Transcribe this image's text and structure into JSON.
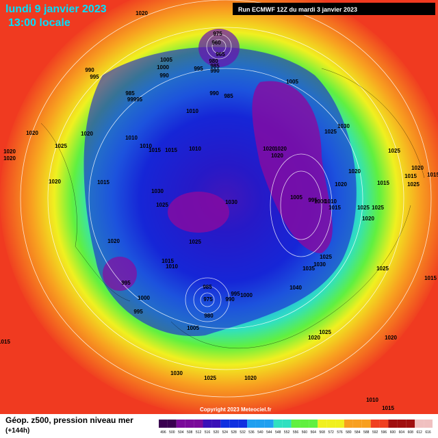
{
  "header": {
    "date": "lundi 9 janvier 2023",
    "time": "13:00 locale",
    "run": "Run ECMWF 12Z du mardi 3 janvier 2023"
  },
  "footer": {
    "label": "Géop. z500, pression niveau mer",
    "lead": "(+144h)",
    "copyright": "Copyright 2023 Meteociel.fr",
    "colorbar_ticks": [
      496,
      500,
      504,
      508,
      512,
      516,
      520,
      524,
      528,
      532,
      536,
      540,
      544,
      548,
      552,
      556,
      560,
      564,
      568,
      572,
      576,
      580,
      584,
      588,
      592,
      596,
      600,
      604,
      608,
      612,
      616
    ]
  },
  "isobar_labels": [
    "1020",
    "975",
    "960",
    "965",
    "980",
    "985",
    "990",
    "1005",
    "1000",
    "990",
    "995",
    "990",
    "995",
    "985",
    "99995",
    "990",
    "985",
    "1005",
    "1010",
    "1025",
    "1030",
    "1020",
    "1025",
    "1020",
    "1020",
    "1020",
    "1010",
    "1010",
    "1015",
    "1015",
    "1010",
    "1020",
    "1020",
    "1020",
    "1025",
    "1020",
    "1020",
    "1020",
    "1015",
    "1030",
    "1025",
    "1030",
    "1005",
    "995",
    "1000",
    "1010",
    "1015",
    "1020",
    "1025",
    "1015",
    "1010",
    "995",
    "1000",
    "995",
    "985",
    "975",
    "980",
    "995",
    "1000",
    "990",
    "1040",
    "1035",
    "1030",
    "1025",
    "1005",
    "1030",
    "1025",
    "1020",
    "1015",
    "1020",
    "1025",
    "1020",
    "1010",
    "1015",
    "1025",
    "1025",
    "1020",
    "1025",
    "1015",
    "1015",
    "1025",
    "1015",
    "1020",
    "1015"
  ]
}
